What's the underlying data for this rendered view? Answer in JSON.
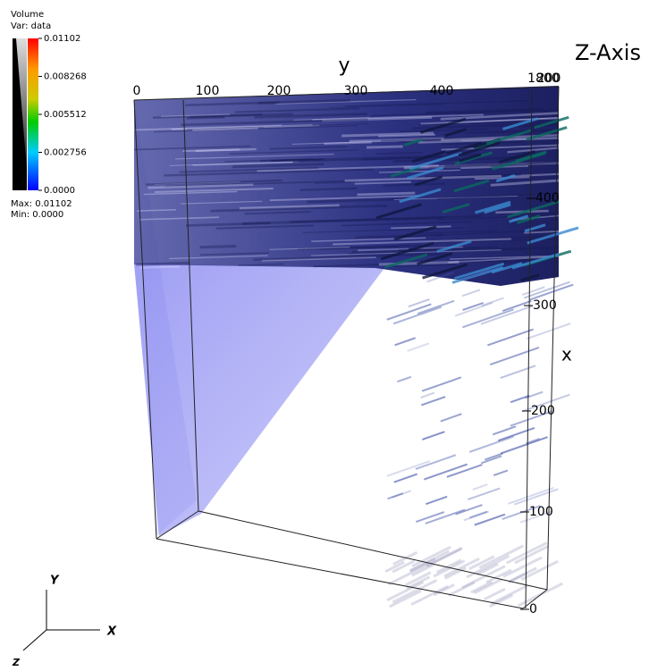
{
  "legend": {
    "title": "Volume",
    "variable": "Var: data",
    "ticks": [
      "0.01102",
      "0.008268",
      "0.005512",
      "0.002756",
      "0.0000"
    ],
    "max": "Max:  0.01102",
    "min": "Min:  0.0000"
  },
  "top_axis": {
    "title": "y",
    "ticks": [
      "0",
      "100",
      "200",
      "300",
      "400"
    ],
    "overlapping_ticks": [
      "1800",
      "200"
    ]
  },
  "depth_axis": {
    "title": "Z-Axis"
  },
  "right_axis": {
    "title": "x",
    "ticks": [
      "400",
      "300",
      "200",
      "100",
      "0"
    ]
  },
  "triad": {
    "y": "Y",
    "x": "X",
    "z": "Z"
  }
}
